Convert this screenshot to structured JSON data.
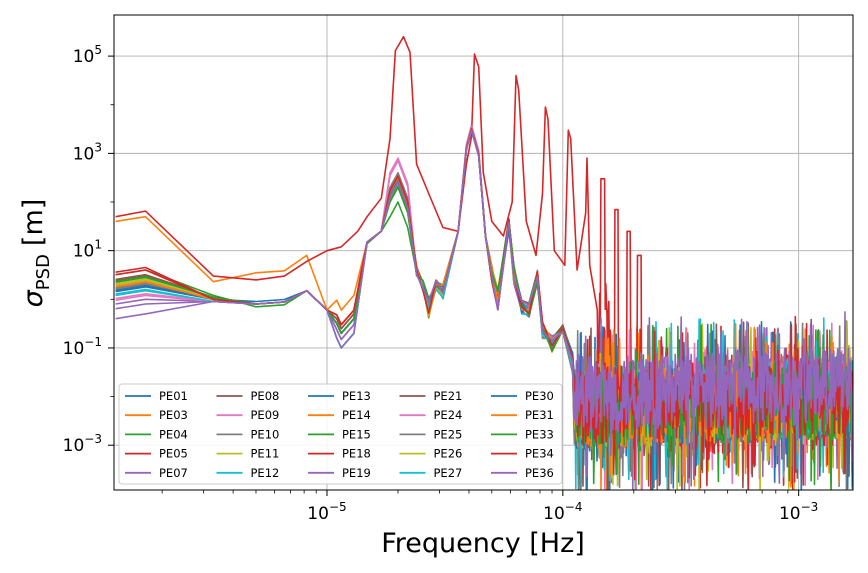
{
  "chart_data": {
    "type": "line",
    "title": "",
    "xlabel": "Frequency [Hz]",
    "ylabel_symbol": "σ",
    "ylabel_sub": "PSD",
    "ylabel_unit": "[m]",
    "xscale": "log",
    "yscale": "log",
    "xlim": [
      1.25e-06,
      0.0017
    ],
    "ylim": [
      0.00012,
      700000
    ],
    "grid": true,
    "legend_position": "lower-left",
    "legend_columns": 5,
    "x_ticks": [
      {
        "value": 1e-05,
        "base": "10",
        "exp": "−5"
      },
      {
        "value": 0.0001,
        "base": "10",
        "exp": "−4"
      },
      {
        "value": 0.001,
        "base": "10",
        "exp": "−3"
      }
    ],
    "y_ticks": [
      {
        "value": 100000.0,
        "base": "10",
        "exp": "5"
      },
      {
        "value": 1000.0,
        "base": "10",
        "exp": "3"
      },
      {
        "value": 10,
        "base": "10",
        "exp": "1"
      },
      {
        "value": 0.1,
        "base": "10",
        "exp": "−1"
      },
      {
        "value": 0.001,
        "base": "10",
        "exp": "−3"
      }
    ],
    "peak_frequencies": [
      2.11e-05,
      4.22e-05,
      6.33e-05,
      8.44e-05,
      0.0001055,
      0.0001266,
      0.0001477,
      0.0001688,
      0.00019,
      0.000211
    ],
    "series": [
      {
        "name": "PE01",
        "color": "#1f77b4",
        "low": [
          2.5,
          1.0,
          0.9,
          1.5,
          0.25,
          15,
          300
        ],
        "peak": 3500,
        "floor": 0.006
      },
      {
        "name": "PE03",
        "color": "#ff7f0e",
        "low": [
          50,
          2.3,
          3.5,
          8,
          0.6,
          15,
          250
        ],
        "peak": 3000,
        "floor": 0.005
      },
      {
        "name": "PE04",
        "color": "#2ca02c",
        "low": [
          4.0,
          1.2,
          0.7,
          1.5,
          0.2,
          14,
          100
        ],
        "peak": 3000,
        "floor": 0.005
      },
      {
        "name": "PE05",
        "color": "#d62728",
        "low": [
          4.5,
          1.0,
          0.8,
          1.5,
          0.3,
          15,
          350
        ],
        "peak": 3200,
        "floor": 0.006
      },
      {
        "name": "PE07",
        "color": "#9467bd",
        "low": [
          1.0,
          0.9,
          0.8,
          1.5,
          0.15,
          15,
          280
        ],
        "peak": 3000,
        "floor": 0.006
      },
      {
        "name": "PE08",
        "color": "#8c564b",
        "low": [
          3.0,
          1.1,
          0.8,
          1.5,
          0.25,
          15,
          300
        ],
        "peak": 3300,
        "floor": 0.005
      },
      {
        "name": "PE09",
        "color": "#e377c2",
        "low": [
          1.2,
          0.9,
          0.8,
          1.5,
          0.2,
          15,
          800
        ],
        "peak": 3800,
        "floor": 0.006
      },
      {
        "name": "PE10",
        "color": "#7f7f7f",
        "low": [
          2.0,
          1.0,
          0.8,
          1.5,
          0.2,
          15,
          400
        ],
        "peak": 3400,
        "floor": 0.005
      },
      {
        "name": "PE11",
        "color": "#bcbd22",
        "low": [
          2.5,
          1.0,
          0.8,
          1.5,
          0.2,
          15,
          350
        ],
        "peak": 3200,
        "floor": 0.005
      },
      {
        "name": "PE12",
        "color": "#17becf",
        "low": [
          1.5,
          0.9,
          0.8,
          1.5,
          0.1,
          15,
          250
        ],
        "peak": 3000,
        "floor": 0.006
      },
      {
        "name": "PE13",
        "color": "#1f77b4",
        "low": [
          1.8,
          1.0,
          0.8,
          1.5,
          0.2,
          15,
          300
        ],
        "peak": 3100,
        "floor": 0.005
      },
      {
        "name": "PE14",
        "color": "#ff7f0e",
        "low": [
          2.2,
          1.0,
          0.8,
          1.5,
          0.3,
          15,
          320
        ],
        "peak": 3300,
        "floor": 0.005
      },
      {
        "name": "PE15",
        "color": "#2ca02c",
        "low": [
          2.8,
          1.1,
          0.8,
          1.5,
          0.2,
          15,
          200
        ],
        "peak": 3000,
        "floor": 0.005
      },
      {
        "name": "PE18",
        "color": "#d62728",
        "low": [
          65,
          3.0,
          2.5,
          6,
          10,
          50,
          250000
        ],
        "peak": 110000,
        "floor": 0.003
      },
      {
        "name": "PE19",
        "color": "#9467bd",
        "low": [
          0.8,
          0.9,
          0.8,
          1.5,
          0.15,
          15,
          250
        ],
        "peak": 3000,
        "floor": 0.008
      },
      {
        "name": "PE21",
        "color": "#8c564b",
        "low": [
          3.2,
          1.1,
          0.8,
          1.5,
          0.25,
          15,
          330
        ],
        "peak": 3300,
        "floor": 0.005
      },
      {
        "name": "PE24",
        "color": "#e377c2",
        "low": [
          1.3,
          0.9,
          0.8,
          1.5,
          0.2,
          15,
          700
        ],
        "peak": 3600,
        "floor": 0.006
      },
      {
        "name": "PE25",
        "color": "#7f7f7f",
        "low": [
          2.1,
          1.0,
          0.8,
          1.5,
          0.2,
          15,
          380
        ],
        "peak": 3300,
        "floor": 0.005
      },
      {
        "name": "PE26",
        "color": "#bcbd22",
        "low": [
          2.6,
          1.0,
          0.8,
          1.5,
          0.2,
          15,
          330
        ],
        "peak": 3200,
        "floor": 0.005
      },
      {
        "name": "PE27",
        "color": "#17becf",
        "low": [
          1.6,
          0.9,
          0.8,
          1.5,
          0.1,
          15,
          260
        ],
        "peak": 3000,
        "floor": 0.006
      },
      {
        "name": "PE30",
        "color": "#1f77b4",
        "low": [
          1.9,
          1.0,
          0.8,
          1.5,
          0.2,
          15,
          300
        ],
        "peak": 3100,
        "floor": 0.005
      },
      {
        "name": "PE31",
        "color": "#ff7f0e",
        "low": [
          2.3,
          1.0,
          0.8,
          1.5,
          0.3,
          15,
          320
        ],
        "peak": 3200,
        "floor": 0.005
      },
      {
        "name": "PE33",
        "color": "#2ca02c",
        "low": [
          2.9,
          1.1,
          0.8,
          1.5,
          0.2,
          15,
          210
        ],
        "peak": 3000,
        "floor": 0.005
      },
      {
        "name": "PE34",
        "color": "#d62728",
        "low": [
          4.0,
          1.0,
          0.8,
          1.5,
          0.3,
          15,
          340
        ],
        "peak": 3200,
        "floor": 0.006
      },
      {
        "name": "PE36",
        "color": "#9467bd",
        "low": [
          0.5,
          0.9,
          0.8,
          1.5,
          0.1,
          15,
          250
        ],
        "peak": 3000,
        "floor": 0.01
      }
    ]
  }
}
